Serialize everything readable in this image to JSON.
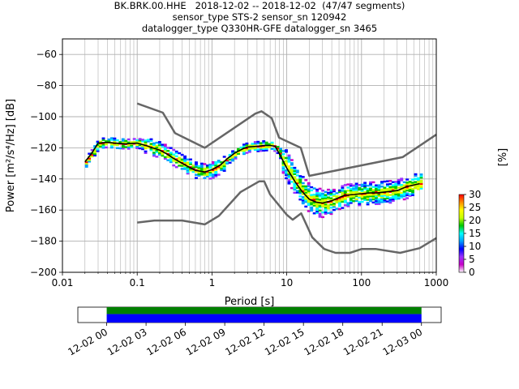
{
  "title": {
    "line1": "BK.BRK.00.HHE   2018-12-02 -- 2018-12-02  (47/47 segments)",
    "line2": "sensor_type STS-2 sensor_sn 120942",
    "line3": "datalogger_type Q330HR-GFE datalogger_sn 3465"
  },
  "chart_data": {
    "type": "heatmap",
    "xlabel": "Period [s]",
    "ylabel": "Power [m²/s⁴/Hz] [dB]",
    "xscale": "log",
    "xlim": [
      0.01,
      1000
    ],
    "ylim": [
      -200,
      -50
    ],
    "x_ticks": [
      0.01,
      0.1,
      1,
      10,
      100,
      1000
    ],
    "x_tick_labels": [
      "0.01",
      "0.1",
      "1",
      "10",
      "100",
      "1000"
    ],
    "y_ticks": [
      -200,
      -180,
      -160,
      -140,
      -120,
      -100,
      -80,
      -60
    ],
    "y_tick_labels": [
      "−200",
      "−180",
      "−160",
      "−140",
      "−120",
      "−100",
      "−80",
      "−60"
    ],
    "grid": true,
    "noise_model_high": {
      "x": [
        0.1,
        0.22,
        0.32,
        0.8,
        3.8,
        4.6,
        6.3,
        7.9,
        15.4,
        20,
        354.8,
        1000
      ],
      "y": [
        -91.5,
        -97.4,
        -110.5,
        -120,
        -98,
        -96.5,
        -101,
        -113.5,
        -120,
        -138,
        -126,
        -111.5
      ]
    },
    "noise_model_low": {
      "x": [
        0.1,
        0.17,
        0.4,
        0.8,
        1.24,
        2.4,
        4.3,
        5,
        6,
        10,
        12,
        15.6,
        21.9,
        31.6,
        45,
        70,
        101,
        154,
        328,
        600,
        1000
      ],
      "y": [
        -168,
        -166.7,
        -166.7,
        -169.2,
        -163.7,
        -148.5,
        -141.5,
        -141.5,
        -150,
        -163,
        -166.2,
        -162.1,
        -177.5,
        -185,
        -187.5,
        -187.5,
        -185,
        -185,
        -187.5,
        -184.5,
        -178
      ]
    },
    "mean_psd": {
      "x": [
        0.02,
        0.025,
        0.03,
        0.04,
        0.05,
        0.07,
        0.1,
        0.13,
        0.16,
        0.2,
        0.25,
        0.3,
        0.4,
        0.5,
        0.6,
        0.8,
        1.0,
        1.3,
        1.6,
        2.0,
        2.5,
        3.0,
        4.0,
        5.0,
        6.0,
        7.0,
        8.0,
        10,
        13,
        16,
        20,
        25,
        30,
        40,
        50,
        60,
        80,
        100,
        130,
        160,
        200,
        300,
        400,
        600
      ],
      "y": [
        -129,
        -123,
        -117,
        -116.5,
        -117,
        -117.5,
        -117,
        -118.5,
        -120,
        -121.5,
        -124,
        -126.5,
        -130,
        -132.5,
        -134.5,
        -135.5,
        -134,
        -131,
        -127,
        -123.5,
        -121,
        -119.5,
        -119,
        -118.5,
        -118.5,
        -119,
        -124,
        -133,
        -142,
        -148,
        -153,
        -155,
        -155.5,
        -154,
        -152,
        -150.5,
        -150,
        -149.5,
        -149,
        -149,
        -148.5,
        -147.5,
        -145,
        -143
      ]
    },
    "colorbar": {
      "label": "[%]",
      "ticks": [
        0,
        5,
        10,
        15,
        20,
        25,
        30
      ],
      "min": 0,
      "max": 30,
      "colors": [
        "#ffffff",
        "#c800c8",
        "#9b30ff",
        "#0000ff",
        "#00a0ff",
        "#00ffff",
        "#00c800",
        "#c8ff00",
        "#ffff00",
        "#ff8c00",
        "#ff0000"
      ]
    },
    "timeline": {
      "tick_labels": [
        "12-02 00",
        "12-02 03",
        "12-02 06",
        "12-02 09",
        "12-02 12",
        "12-02 15",
        "12-02 18",
        "12-02 21",
        "12-03 00"
      ],
      "data_start_hour": 0,
      "data_end_hour": 24,
      "bar_colors": {
        "data": "#0000ff",
        "used": "#008000"
      }
    }
  }
}
